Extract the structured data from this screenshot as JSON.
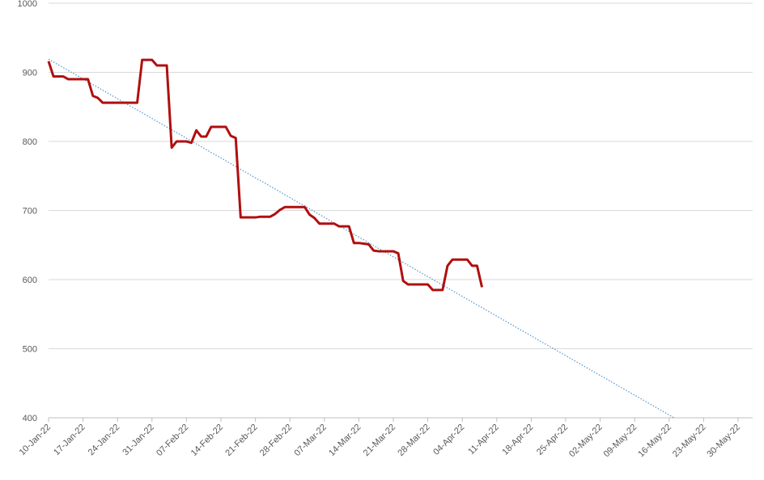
{
  "chart_data": {
    "type": "line",
    "x": [
      "10-Jan-22",
      "11-Jan-22",
      "12-Jan-22",
      "13-Jan-22",
      "14-Jan-22",
      "15-Jan-22",
      "16-Jan-22",
      "17-Jan-22",
      "18-Jan-22",
      "19-Jan-22",
      "20-Jan-22",
      "21-Jan-22",
      "22-Jan-22",
      "23-Jan-22",
      "24-Jan-22",
      "25-Jan-22",
      "26-Jan-22",
      "27-Jan-22",
      "28-Jan-22",
      "29-Jan-22",
      "30-Jan-22",
      "31-Jan-22",
      "01-Feb-22",
      "02-Feb-22",
      "03-Feb-22",
      "04-Feb-22",
      "05-Feb-22",
      "06-Feb-22",
      "07-Feb-22",
      "08-Feb-22",
      "09-Feb-22",
      "10-Feb-22",
      "11-Feb-22",
      "12-Feb-22",
      "13-Feb-22",
      "14-Feb-22",
      "15-Feb-22",
      "16-Feb-22",
      "17-Feb-22",
      "18-Feb-22",
      "19-Feb-22",
      "20-Feb-22",
      "21-Feb-22",
      "22-Feb-22",
      "23-Feb-22",
      "24-Feb-22",
      "25-Feb-22",
      "26-Feb-22",
      "27-Feb-22",
      "28-Feb-22",
      "01-Mar-22",
      "02-Mar-22",
      "03-Mar-22",
      "04-Mar-22",
      "05-Mar-22",
      "06-Mar-22",
      "07-Mar-22",
      "08-Mar-22",
      "09-Mar-22",
      "10-Mar-22",
      "11-Mar-22",
      "12-Mar-22",
      "13-Mar-22",
      "14-Mar-22",
      "15-Mar-22",
      "16-Mar-22",
      "17-Mar-22",
      "18-Mar-22",
      "19-Mar-22",
      "20-Mar-22",
      "21-Mar-22",
      "22-Mar-22",
      "23-Mar-22",
      "24-Mar-22",
      "25-Mar-22",
      "26-Mar-22",
      "27-Mar-22",
      "28-Mar-22",
      "29-Mar-22",
      "30-Mar-22",
      "31-Mar-22",
      "01-Apr-22",
      "02-Apr-22",
      "03-Apr-22",
      "04-Apr-22",
      "05-Apr-22",
      "06-Apr-22",
      "07-Apr-22",
      "08-Apr-22"
    ],
    "series": [
      {
        "color": "#b00f0f",
        "width": 3,
        "values": [
          916,
          894,
          894,
          894,
          890,
          890,
          890,
          890,
          890,
          866,
          863,
          856,
          856,
          856,
          856,
          856,
          856,
          856,
          856,
          918,
          918,
          918,
          910,
          910,
          910,
          791,
          800,
          800,
          800,
          798,
          816,
          807,
          807,
          821,
          821,
          821,
          821,
          808,
          805,
          690,
          690,
          690,
          690,
          691,
          691,
          691,
          695,
          701,
          705,
          705,
          705,
          705,
          705,
          694,
          689,
          681,
          681,
          681,
          681,
          677,
          677,
          677,
          653,
          653,
          652,
          651,
          642,
          641,
          641,
          641,
          641,
          638,
          598,
          593,
          593,
          593,
          593,
          593,
          585,
          585,
          585,
          620,
          629,
          629,
          629,
          629,
          620,
          620,
          589
        ]
      },
      {
        "color": "#5b9bd5",
        "width": 1.3,
        "style": "dotted",
        "x": [
          "10-Jan-22",
          "17-May-22"
        ],
        "values": [
          919,
          400
        ]
      }
    ],
    "xlim": [
      "10-Jan-22",
      "30-May-22"
    ],
    "xticks": [
      "10-Jan-22",
      "17-Jan-22",
      "24-Jan-22",
      "31-Jan-22",
      "07-Feb-22",
      "14-Feb-22",
      "21-Feb-22",
      "28-Feb-22",
      "07-Mar-22",
      "14-Mar-22",
      "21-Mar-22",
      "28-Mar-22",
      "04-Apr-22",
      "11-Apr-22",
      "18-Apr-22",
      "25-Apr-22",
      "02-May-22",
      "09-May-22",
      "16-May-22",
      "23-May-22",
      "30-May-22"
    ],
    "ylim": [
      400,
      1000
    ],
    "yticks": [
      400,
      500,
      600,
      700,
      800,
      900,
      1000
    ],
    "grid": true
  }
}
